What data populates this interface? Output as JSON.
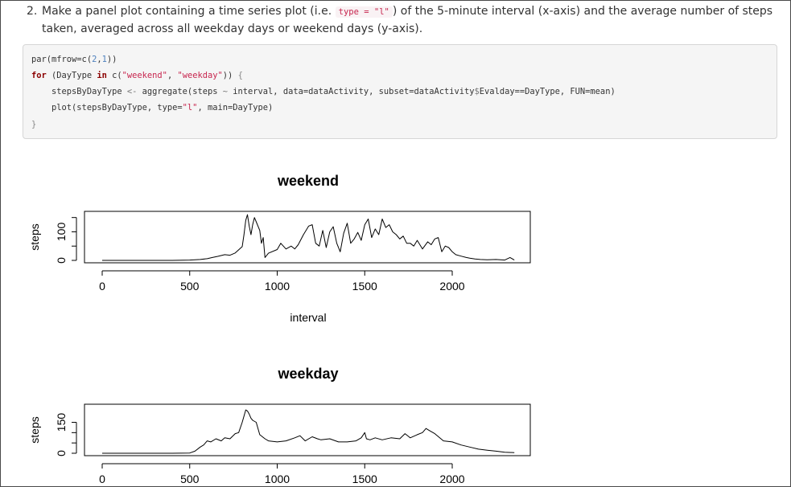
{
  "instruction": {
    "number": "2.",
    "text_before": "Make a panel plot containing a time series plot (i.e. ",
    "code": "type = \"l\"",
    "text_after": ") of the 5-minute interval (x-axis) and the average number of steps taken, averaged across all weekday days or weekend days (y-axis)."
  },
  "code_lines": [
    [
      {
        "t": "par(mfrow=c(",
        "c": ""
      },
      {
        "t": "2",
        "c": "numc"
      },
      {
        "t": ",",
        "c": ""
      },
      {
        "t": "1",
        "c": "numc"
      },
      {
        "t": "))",
        "c": ""
      }
    ],
    [
      {
        "t": "for",
        "c": "kw"
      },
      {
        "t": " (DayType ",
        "c": ""
      },
      {
        "t": "in",
        "c": "kw"
      },
      {
        "t": " c(",
        "c": ""
      },
      {
        "t": "\"weekend\"",
        "c": "str"
      },
      {
        "t": ", ",
        "c": ""
      },
      {
        "t": "\"weekday\"",
        "c": "str"
      },
      {
        "t": ")) ",
        "c": ""
      },
      {
        "t": "{",
        "c": "brace"
      }
    ],
    [
      {
        "t": "    stepsByDayType ",
        "c": ""
      },
      {
        "t": "<-",
        "c": "op"
      },
      {
        "t": " aggregate(steps ",
        "c": ""
      },
      {
        "t": "~",
        "c": "op"
      },
      {
        "t": " interval, data=dataActivity, subset=dataActivity",
        "c": ""
      },
      {
        "t": "$",
        "c": "op"
      },
      {
        "t": "Evalday==DayType, FUN=mean)",
        "c": ""
      }
    ],
    [
      {
        "t": "    plot(stepsByDayType, type=",
        "c": ""
      },
      {
        "t": "\"l\"",
        "c": "str"
      },
      {
        "t": ", main=DayType)",
        "c": ""
      }
    ],
    [
      {
        "t": "}",
        "c": "brace"
      }
    ]
  ],
  "chart_data": [
    {
      "type": "line",
      "title": "weekend",
      "xlabel": "interval",
      "ylabel": "steps",
      "xlim": [
        0,
        2355
      ],
      "ylim": [
        0,
        166
      ],
      "xticks": [
        0,
        500,
        1000,
        1500,
        2000
      ],
      "yticks": [
        0,
        50,
        100,
        150
      ],
      "ytick_labels": [
        0,
        100
      ],
      "x": [
        0,
        100,
        200,
        300,
        400,
        500,
        530,
        560,
        600,
        630,
        660,
        700,
        730,
        760,
        800,
        810,
        820,
        830,
        840,
        850,
        860,
        870,
        880,
        900,
        910,
        920,
        930,
        950,
        1000,
        1020,
        1050,
        1080,
        1100,
        1120,
        1150,
        1180,
        1200,
        1220,
        1240,
        1260,
        1280,
        1300,
        1320,
        1340,
        1360,
        1380,
        1400,
        1420,
        1440,
        1460,
        1480,
        1500,
        1520,
        1540,
        1560,
        1580,
        1600,
        1620,
        1640,
        1660,
        1680,
        1700,
        1720,
        1740,
        1760,
        1780,
        1800,
        1830,
        1860,
        1880,
        1900,
        1920,
        1940,
        1960,
        1980,
        2000,
        2020,
        2050,
        2080,
        2100,
        2130,
        2160,
        2200,
        2250,
        2300,
        2330,
        2355
      ],
      "y": [
        0,
        0,
        0,
        0,
        0,
        1,
        2,
        3,
        6,
        10,
        14,
        20,
        18,
        26,
        48,
        90,
        140,
        160,
        120,
        90,
        125,
        150,
        135,
        105,
        60,
        80,
        10,
        25,
        38,
        60,
        40,
        50,
        40,
        55,
        90,
        120,
        125,
        60,
        50,
        105,
        45,
        100,
        118,
        60,
        30,
        95,
        130,
        60,
        75,
        98,
        70,
        125,
        145,
        80,
        110,
        90,
        145,
        115,
        125,
        100,
        90,
        75,
        85,
        60,
        60,
        50,
        70,
        40,
        65,
        55,
        75,
        80,
        30,
        50,
        45,
        30,
        20,
        15,
        10,
        8,
        5,
        3,
        2,
        3,
        1,
        10,
        1
      ]
    },
    {
      "type": "line",
      "title": "weekday",
      "xlabel": "",
      "ylabel": "steps",
      "xlim": [
        0,
        2355
      ],
      "ylim": [
        0,
        230
      ],
      "xticks": [
        0,
        500,
        1000,
        1500,
        2000
      ],
      "yticks": [
        0,
        50,
        100,
        150
      ],
      "ytick_labels": [
        0,
        150
      ],
      "x": [
        0,
        100,
        200,
        300,
        400,
        500,
        530,
        560,
        580,
        600,
        620,
        650,
        680,
        700,
        730,
        760,
        780,
        800,
        820,
        830,
        840,
        850,
        860,
        880,
        900,
        930,
        950,
        1000,
        1050,
        1100,
        1130,
        1160,
        1200,
        1230,
        1250,
        1300,
        1350,
        1400,
        1450,
        1480,
        1500,
        1510,
        1530,
        1560,
        1600,
        1650,
        1700,
        1730,
        1760,
        1800,
        1830,
        1850,
        1870,
        1900,
        1950,
        2000,
        2050,
        2100,
        2150,
        2200,
        2250,
        2300,
        2355
      ],
      "y": [
        0,
        0,
        0,
        0,
        0,
        1,
        10,
        30,
        40,
        60,
        55,
        70,
        60,
        75,
        70,
        95,
        100,
        150,
        210,
        205,
        190,
        170,
        160,
        150,
        90,
        70,
        60,
        55,
        60,
        75,
        85,
        60,
        80,
        70,
        65,
        70,
        55,
        55,
        60,
        75,
        100,
        70,
        65,
        75,
        65,
        75,
        70,
        95,
        75,
        90,
        100,
        120,
        110,
        95,
        60,
        55,
        40,
        30,
        20,
        15,
        10,
        5,
        3
      ]
    }
  ]
}
